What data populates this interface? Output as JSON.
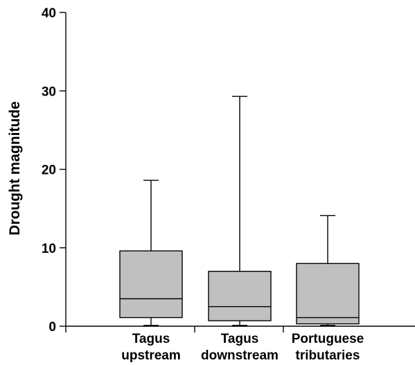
{
  "chart_data": {
    "type": "box",
    "title": "",
    "ylabel": "Drought magnitude",
    "xlabel": "",
    "ylim": [
      0,
      40
    ],
    "yticks": [
      0,
      10,
      20,
      30,
      40
    ],
    "grid": false,
    "box_color": "#c0c0c0",
    "line_color": "#000000",
    "categories": [
      {
        "lines": [
          "Tagus",
          "upstream"
        ]
      },
      {
        "lines": [
          "Tagus",
          "downstream"
        ]
      },
      {
        "lines": [
          "Portuguese",
          "tributaries"
        ]
      }
    ],
    "boxes": [
      {
        "min": 0.1,
        "q1": 1.1,
        "median": 3.5,
        "q3": 9.6,
        "max": 18.6
      },
      {
        "min": 0.1,
        "q1": 0.7,
        "median": 2.5,
        "q3": 7.0,
        "max": 29.3
      },
      {
        "min": 0.1,
        "q1": 0.3,
        "median": 1.1,
        "q3": 8.0,
        "max": 14.1
      }
    ]
  }
}
